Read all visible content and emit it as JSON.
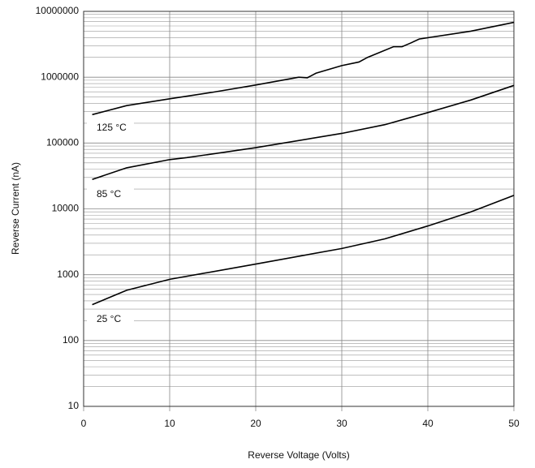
{
  "chart_data": {
    "type": "line",
    "xlabel": "Reverse Voltage (Volts)",
    "ylabel": "Reverse Current (nA)",
    "xlim": [
      0,
      50
    ],
    "xticks": [
      0,
      10,
      20,
      30,
      40,
      50
    ],
    "ylim": [
      10,
      10000000
    ],
    "yticks": [
      10,
      100,
      1000,
      10000,
      100000,
      1000000,
      10000000
    ],
    "yscale": "log",
    "grid": true,
    "series": [
      {
        "name": "125 °C",
        "color": "#000000",
        "x": [
          1,
          5,
          10,
          15,
          20,
          25,
          26,
          27,
          30,
          32,
          33,
          36,
          37,
          38,
          39,
          45,
          50
        ],
        "values": [
          270000,
          370000,
          470000,
          590000,
          760000,
          1000000,
          980000,
          1150000,
          1500000,
          1700000,
          2000000,
          2900000,
          2900000,
          3300000,
          3800000,
          5000000,
          6800000
        ]
      },
      {
        "name": "85 °C",
        "color": "#000000",
        "x": [
          1,
          5,
          10,
          12,
          20,
          30,
          35,
          40,
          45,
          50
        ],
        "values": [
          28000,
          42000,
          56000,
          60000,
          85000,
          140000,
          190000,
          290000,
          450000,
          750000
        ]
      },
      {
        "name": "25 °C",
        "color": "#000000",
        "x": [
          1,
          5,
          10,
          20,
          30,
          35,
          40,
          45,
          50
        ],
        "values": [
          350,
          580,
          850,
          1450,
          2500,
          3500,
          5500,
          9000,
          16000
        ]
      }
    ]
  }
}
